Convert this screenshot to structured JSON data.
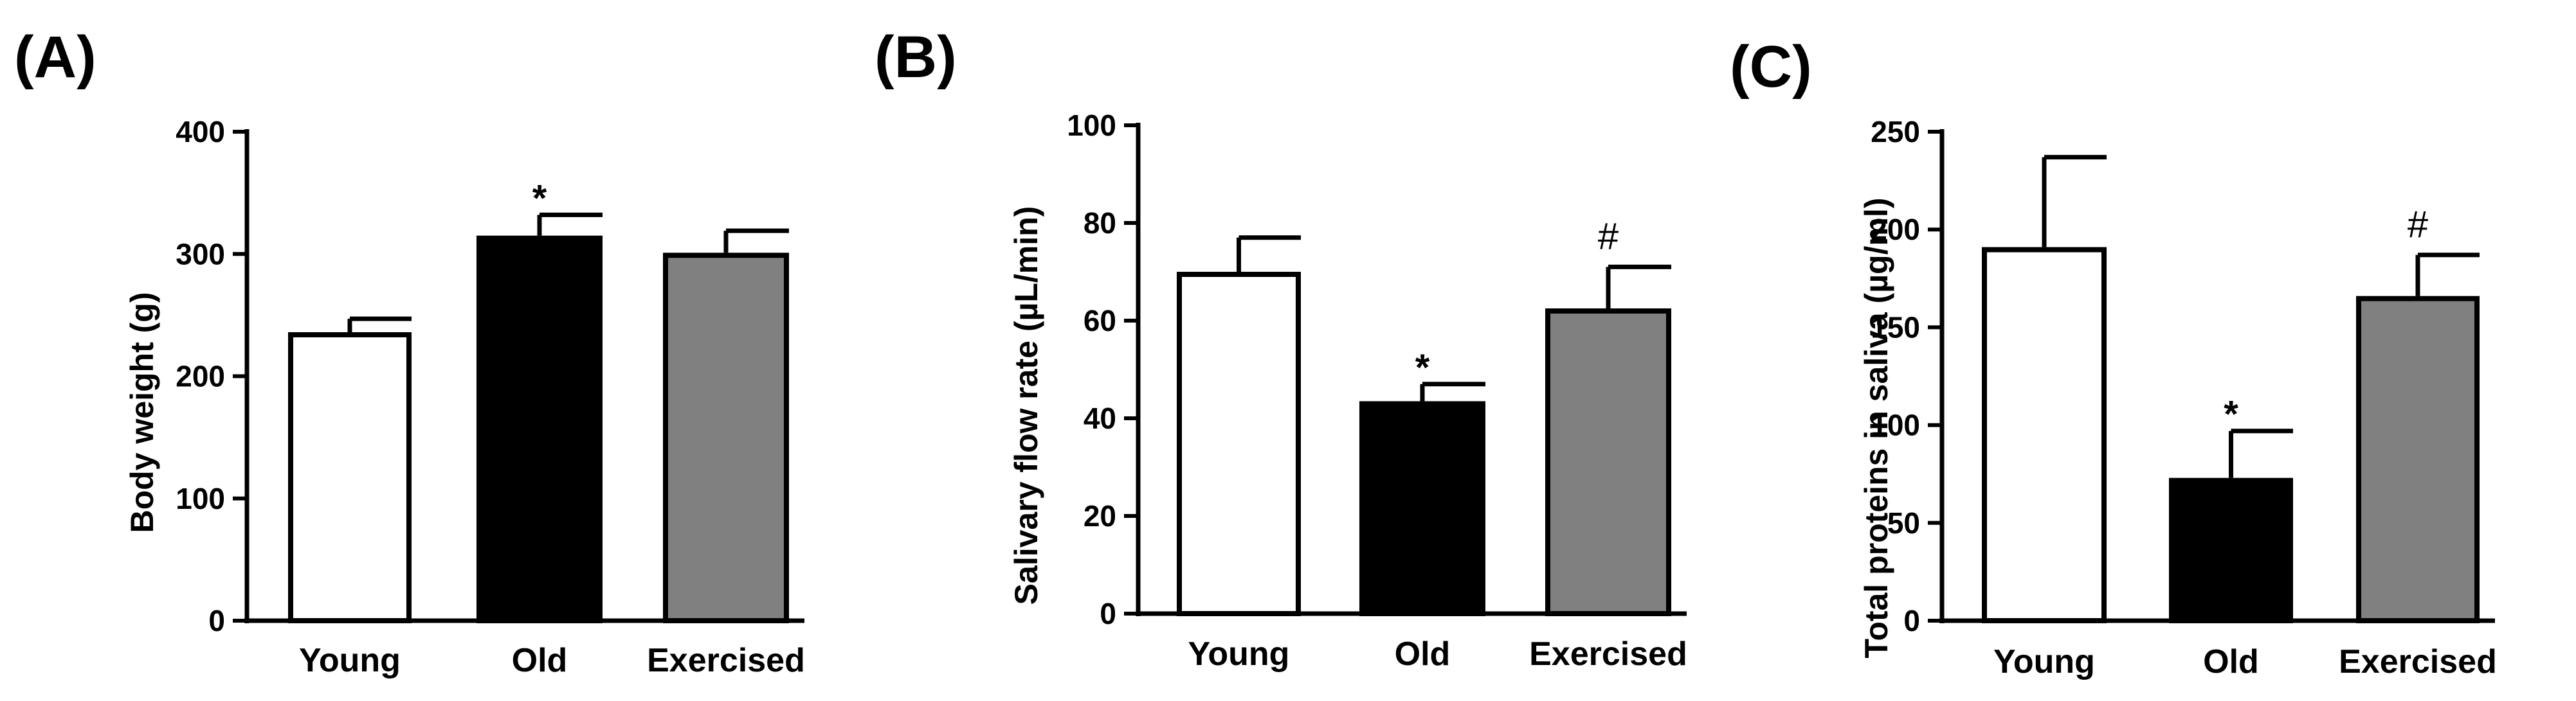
{
  "chart_data": [
    {
      "type": "bar",
      "panel_label": "(A)",
      "categories": [
        "Young",
        "Old",
        "Exercised"
      ],
      "values": [
        236,
        315,
        301
      ],
      "errors": [
        11,
        17,
        18
      ],
      "colors": [
        "#ffffff",
        "#000000",
        "#808080"
      ],
      "annotations": [
        "",
        "*",
        ""
      ],
      "ylabel": "Body weight (g)",
      "xlabel": "",
      "ylim": [
        0,
        400
      ],
      "yticks": [
        "0",
        "100",
        "200",
        "300",
        "400"
      ]
    },
    {
      "type": "bar",
      "panel_label": "(B)",
      "categories": [
        "Young",
        "Old",
        "Exercised"
      ],
      "values": [
        70,
        43.5,
        62.5
      ],
      "errors": [
        7,
        3.5,
        8.5
      ],
      "colors": [
        "#ffffff",
        "#000000",
        "#808080"
      ],
      "annotations": [
        "",
        "*",
        "#"
      ],
      "ylabel": "Salivary flow rate (µL/min)",
      "xlabel": "",
      "ylim": [
        0,
        100
      ],
      "yticks": [
        "0",
        "20",
        "40",
        "60",
        "80",
        "100"
      ]
    },
    {
      "type": "bar",
      "panel_label": "(C)",
      "categories": [
        "Young",
        "Old",
        "Exercised"
      ],
      "values": [
        191,
        73,
        166
      ],
      "errors": [
        46,
        24,
        21
      ],
      "colors": [
        "#ffffff",
        "#000000",
        "#808080"
      ],
      "annotations": [
        "",
        "*",
        "#"
      ],
      "ylabel": "Total proteins in saliva (µg/ml)",
      "xlabel": "",
      "ylim": [
        0,
        250
      ],
      "yticks": [
        "0",
        "50",
        "100",
        "150",
        "200",
        "250"
      ]
    }
  ]
}
